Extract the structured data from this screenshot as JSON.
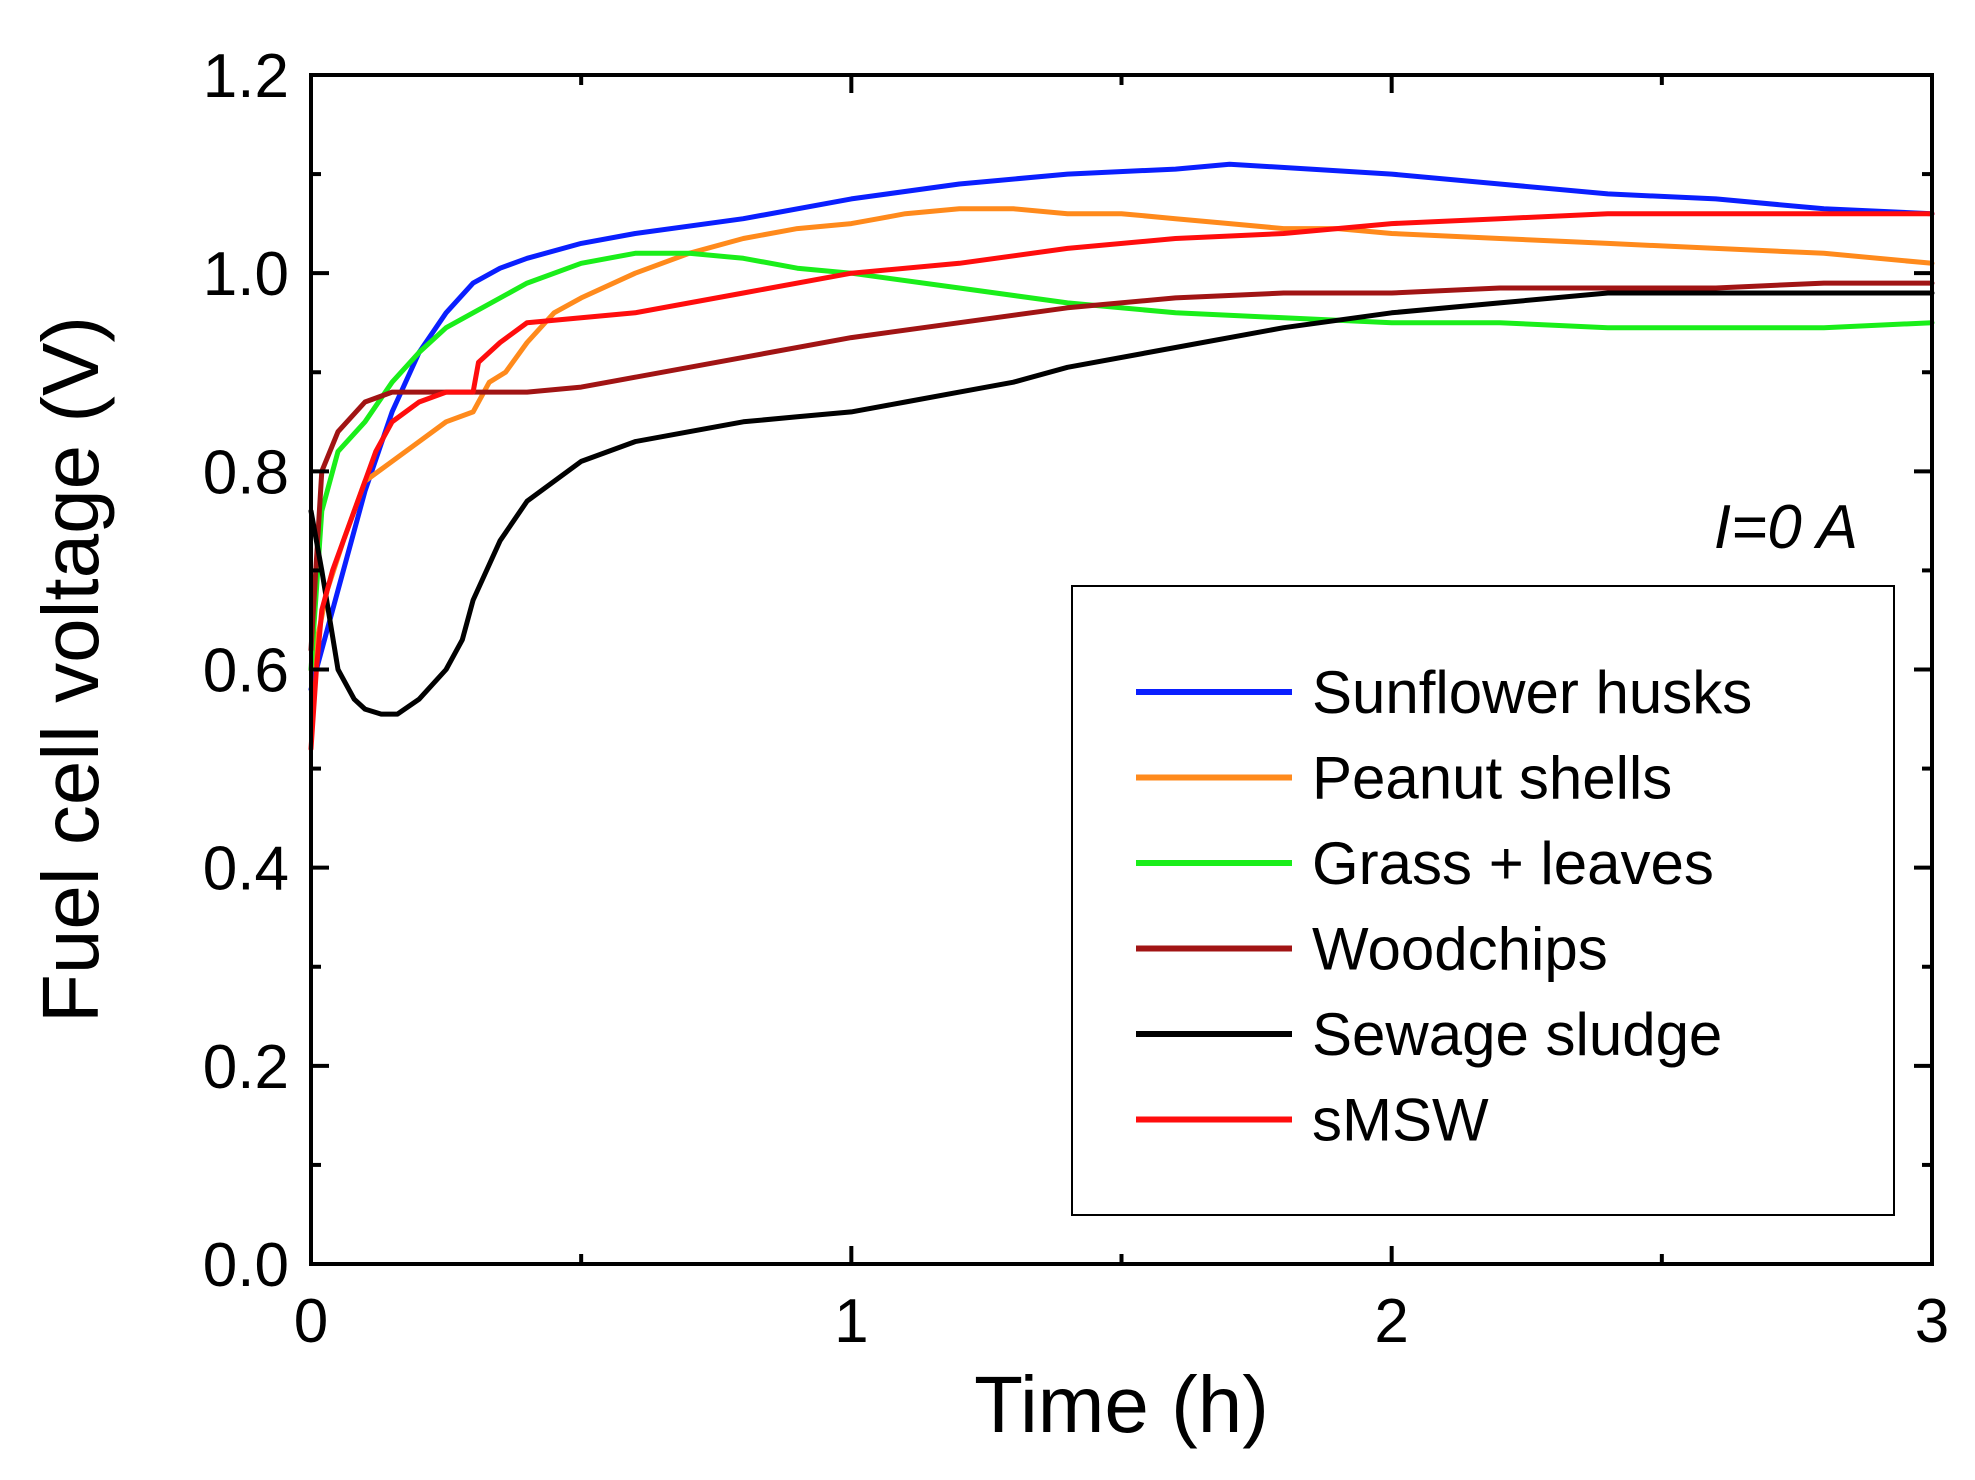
{
  "chart_data": {
    "type": "line",
    "title": "",
    "xlabel": "Time (h)",
    "ylabel": "Fuel cell voltage (V)",
    "xlim": [
      0,
      3
    ],
    "ylim": [
      0,
      1.2
    ],
    "xticks": [
      0,
      1,
      2,
      3
    ],
    "yticks": [
      0.0,
      0.2,
      0.4,
      0.6,
      0.8,
      1.0,
      1.2
    ],
    "xtick_labels": [
      "0",
      "1",
      "2",
      "3"
    ],
    "ytick_labels": [
      "0.0",
      "0.2",
      "0.4",
      "0.6",
      "0.8",
      "1.0",
      "1.2"
    ],
    "grid": false,
    "legend_position": "lower-right",
    "annotation": {
      "var": "I",
      "rest": "=0 A"
    },
    "series": [
      {
        "name": "Sunflower husks",
        "color": "#0a1fff",
        "x": [
          0,
          0.05,
          0.1,
          0.15,
          0.2,
          0.25,
          0.3,
          0.35,
          0.4,
          0.5,
          0.6,
          0.8,
          1.0,
          1.2,
          1.4,
          1.6,
          1.7,
          1.85,
          2.0,
          2.2,
          2.4,
          2.6,
          2.8,
          3.0
        ],
        "y": [
          0.58,
          0.68,
          0.78,
          0.86,
          0.92,
          0.96,
          0.99,
          1.005,
          1.015,
          1.03,
          1.04,
          1.055,
          1.075,
          1.09,
          1.1,
          1.105,
          1.11,
          1.105,
          1.1,
          1.09,
          1.08,
          1.075,
          1.065,
          1.06
        ]
      },
      {
        "name": "Peanut shells",
        "color": "#ff8a1c",
        "x": [
          0,
          0.03,
          0.06,
          0.1,
          0.15,
          0.2,
          0.25,
          0.3,
          0.33,
          0.36,
          0.4,
          0.45,
          0.5,
          0.6,
          0.7,
          0.8,
          0.9,
          1.0,
          1.05,
          1.1,
          1.2,
          1.3,
          1.4,
          1.5,
          1.6,
          1.7,
          1.8,
          1.9,
          2.0,
          2.2,
          2.4,
          2.6,
          2.8,
          3.0
        ],
        "y": [
          0.6,
          0.68,
          0.73,
          0.79,
          0.81,
          0.83,
          0.85,
          0.86,
          0.89,
          0.9,
          0.93,
          0.96,
          0.975,
          1.0,
          1.02,
          1.035,
          1.045,
          1.05,
          1.055,
          1.06,
          1.065,
          1.065,
          1.06,
          1.06,
          1.055,
          1.05,
          1.045,
          1.045,
          1.04,
          1.035,
          1.03,
          1.025,
          1.02,
          1.01
        ]
      },
      {
        "name": "Grass + leaves",
        "color": "#1aee1a",
        "x": [
          0,
          0.02,
          0.05,
          0.1,
          0.15,
          0.2,
          0.25,
          0.3,
          0.4,
          0.5,
          0.6,
          0.7,
          0.8,
          0.9,
          1.0,
          1.2,
          1.4,
          1.6,
          1.8,
          2.0,
          2.2,
          2.4,
          2.6,
          2.8,
          3.0
        ],
        "y": [
          0.6,
          0.76,
          0.82,
          0.85,
          0.89,
          0.92,
          0.945,
          0.96,
          0.99,
          1.01,
          1.02,
          1.02,
          1.015,
          1.005,
          1.0,
          0.985,
          0.97,
          0.96,
          0.955,
          0.95,
          0.95,
          0.945,
          0.945,
          0.945,
          0.95
        ]
      },
      {
        "name": "Woodchips",
        "color": "#a11414",
        "x": [
          0,
          0.02,
          0.05,
          0.1,
          0.15,
          0.2,
          0.3,
          0.4,
          0.5,
          0.6,
          0.8,
          1.0,
          1.2,
          1.4,
          1.6,
          1.8,
          2.0,
          2.2,
          2.4,
          2.6,
          2.8,
          3.0
        ],
        "y": [
          0.62,
          0.8,
          0.84,
          0.87,
          0.88,
          0.88,
          0.88,
          0.88,
          0.885,
          0.895,
          0.915,
          0.935,
          0.95,
          0.965,
          0.975,
          0.98,
          0.98,
          0.985,
          0.985,
          0.985,
          0.99,
          0.99
        ]
      },
      {
        "name": "Sewage sludge",
        "color": "#000000",
        "x": [
          0,
          0.02,
          0.05,
          0.08,
          0.1,
          0.13,
          0.16,
          0.2,
          0.25,
          0.28,
          0.3,
          0.35,
          0.4,
          0.5,
          0.6,
          0.7,
          0.8,
          0.9,
          1.0,
          1.1,
          1.2,
          1.3,
          1.4,
          1.6,
          1.8,
          2.0,
          2.2,
          2.4,
          2.6,
          2.8,
          3.0
        ],
        "y": [
          0.76,
          0.7,
          0.6,
          0.57,
          0.56,
          0.555,
          0.555,
          0.57,
          0.6,
          0.63,
          0.67,
          0.73,
          0.77,
          0.81,
          0.83,
          0.84,
          0.85,
          0.855,
          0.86,
          0.87,
          0.88,
          0.89,
          0.905,
          0.925,
          0.945,
          0.96,
          0.97,
          0.98,
          0.98,
          0.98,
          0.98
        ]
      },
      {
        "name": "sMSW",
        "color": "#ff0d0d",
        "x": [
          0,
          0.01,
          0.02,
          0.04,
          0.06,
          0.08,
          0.1,
          0.12,
          0.15,
          0.2,
          0.25,
          0.3,
          0.31,
          0.35,
          0.4,
          0.5,
          0.6,
          0.8,
          1.0,
          1.2,
          1.4,
          1.6,
          1.8,
          2.0,
          2.2,
          2.4,
          2.6,
          2.8,
          3.0
        ],
        "y": [
          0.52,
          0.6,
          0.66,
          0.7,
          0.73,
          0.76,
          0.79,
          0.82,
          0.85,
          0.87,
          0.88,
          0.88,
          0.91,
          0.93,
          0.95,
          0.955,
          0.96,
          0.98,
          1.0,
          1.01,
          1.025,
          1.035,
          1.04,
          1.05,
          1.055,
          1.06,
          1.06,
          1.06,
          1.06
        ]
      }
    ]
  }
}
